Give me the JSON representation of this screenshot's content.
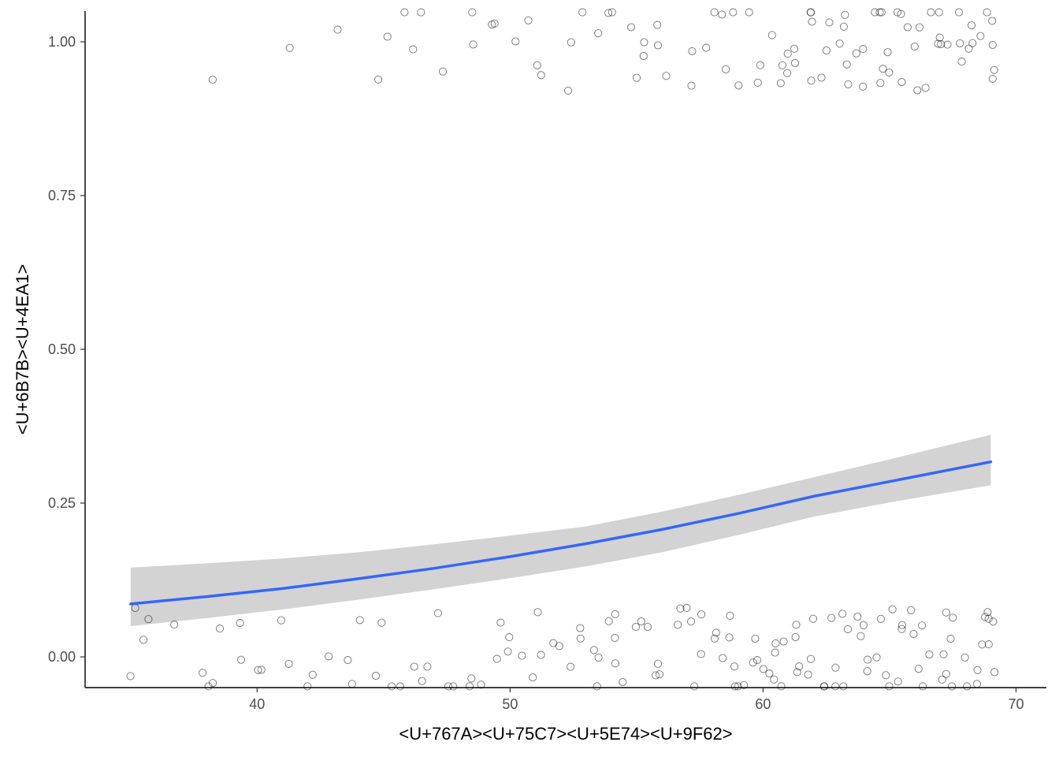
{
  "chart_data": {
    "type": "scatter",
    "title": "",
    "xlabel": "<U+767A><U+75C7><U+5E74><U+9F62>",
    "ylabel": "<U+6B7B><U+4EA1>",
    "xlim": [
      33.2,
      71.2
    ],
    "ylim": [
      -0.05,
      1.05
    ],
    "x_ticks": [
      40,
      50,
      60,
      70
    ],
    "y_ticks": [
      0.0,
      0.25,
      0.5,
      0.75,
      1.0
    ],
    "x_tick_labels": [
      "40",
      "50",
      "60",
      "70"
    ],
    "y_tick_labels": [
      "0.00",
      "0.25",
      "0.50",
      "0.75",
      "1.00"
    ],
    "grid": false,
    "legend": "none",
    "point_style": "hollow-circle-jittered",
    "fit": {
      "method": "logistic",
      "color": "#3366ff",
      "band_color": "#d3d3d3",
      "x": [
        35,
        38,
        41,
        44,
        47,
        50,
        53,
        56,
        59,
        62,
        65,
        69
      ],
      "y": [
        0.086,
        0.098,
        0.111,
        0.127,
        0.144,
        0.163,
        0.184,
        0.207,
        0.233,
        0.261,
        0.285,
        0.317
      ],
      "lower": [
        0.05,
        0.063,
        0.077,
        0.093,
        0.11,
        0.128,
        0.147,
        0.17,
        0.198,
        0.228,
        0.251,
        0.279
      ],
      "upper": [
        0.145,
        0.152,
        0.16,
        0.17,
        0.183,
        0.197,
        0.212,
        0.236,
        0.263,
        0.292,
        0.321,
        0.361
      ]
    },
    "points": {
      "outcome_1": [
        38.2,
        41.1,
        43.1,
        44.9,
        45.1,
        46.0,
        46.1,
        46.3,
        47.5,
        48.4,
        48.6,
        49.0,
        49.4,
        50.2,
        50.6,
        51.2,
        51.5,
        52.2,
        52.4,
        53.1,
        53.3,
        53.6,
        53.9,
        54.5,
        54.9,
        55.1,
        55.2,
        55.6,
        56.1,
        56.4,
        56.9,
        57.2,
        57.5,
        58.0,
        58.2,
        58.6,
        58.9,
        59.1,
        59.5,
        59.8,
        60.0,
        60.3,
        60.6,
        60.9,
        61.2,
        61.5,
        61.7,
        61.9,
        62.2,
        62.4,
        62.6,
        62.8,
        63.0,
        63.2,
        63.4,
        63.6,
        63.8,
        64.0,
        64.2,
        64.4,
        64.6,
        64.8,
        65.0,
        65.2,
        65.4,
        65.6,
        65.8,
        66.0,
        66.2,
        66.4,
        66.6,
        66.8,
        67.0,
        67.2,
        67.4,
        67.6,
        67.8,
        68.0,
        68.2,
        68.4,
        68.6,
        68.8,
        69.0,
        69.2,
        62.1,
        63.5,
        64.9,
        66.3,
        67.7,
        68.9,
        60.7,
        61.4,
        65.1,
        66.9,
        68.1,
        64.3
      ],
      "outcome_0": [
        34.9,
        35.1,
        35.4,
        35.9,
        36.6,
        37.7,
        37.9,
        38.2,
        38.7,
        39.1,
        39.6,
        39.9,
        40.3,
        40.7,
        41.3,
        41.8,
        42.4,
        42.9,
        43.3,
        43.6,
        44.1,
        44.5,
        44.9,
        45.2,
        45.6,
        46.1,
        46.4,
        46.8,
        47.2,
        47.6,
        47.9,
        48.3,
        48.6,
        48.9,
        49.3,
        49.6,
        49.9,
        50.2,
        50.5,
        50.8,
        51.1,
        51.4,
        51.7,
        52.0,
        52.3,
        52.6,
        52.9,
        53.2,
        53.5,
        53.8,
        54.1,
        54.4,
        54.7,
        55.0,
        55.3,
        55.6,
        55.9,
        56.2,
        56.5,
        56.8,
        57.1,
        57.4,
        57.7,
        58.0,
        58.3,
        58.6,
        58.9,
        59.2,
        59.5,
        59.8,
        60.1,
        60.4,
        60.7,
        61.0,
        61.3,
        61.6,
        61.9,
        62.2,
        62.5,
        62.8,
        63.1,
        63.4,
        63.7,
        64.0,
        64.3,
        64.6,
        64.9,
        65.2,
        65.5,
        65.8,
        66.1,
        66.4,
        66.7,
        67.0,
        67.3,
        67.6,
        67.9,
        68.2,
        68.5,
        68.8,
        69.1,
        54.2,
        55.7,
        57.3,
        58.8,
        60.2,
        61.7,
        63.2,
        64.7,
        66.2,
        67.7,
        69.0,
        56.6,
        59.6,
        62.6,
        65.6,
        68.6,
        53.4,
        57.9,
        61.1,
        64.1,
        67.1,
        68.9,
        60.9,
        63.9,
        66.9,
        69.2,
        58.5,
        62.3,
        65.3,
        68.3,
        59.1,
        61.5,
        64.5,
        67.5,
        68.7,
        66.5,
        63.5,
        60.5
      ]
    }
  }
}
